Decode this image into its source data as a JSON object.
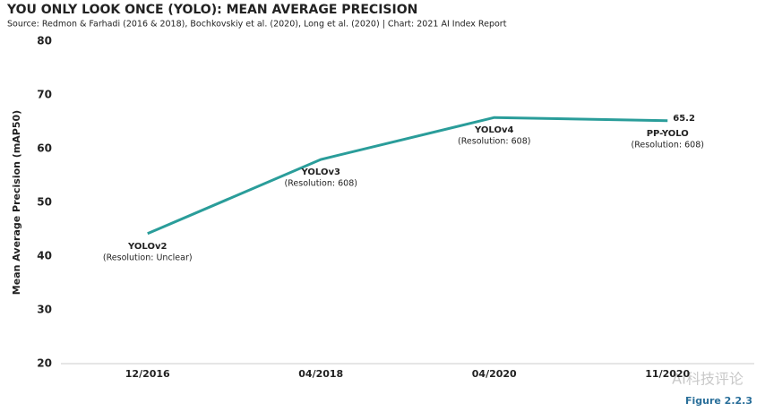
{
  "chart_data": {
    "type": "line",
    "title": "YOU ONLY LOOK ONCE (YOLO): MEAN AVERAGE PRECISION",
    "subtitle": "Source: Redmon & Farhadi (2016 & 2018), Bochkovskiy et al. (2020), Long et al. (2020) | Chart: 2021 AI Index Report",
    "y_label": "Mean Average Precision (mAP50)",
    "categories": [
      "12/2016",
      "04/2018",
      "04/2020",
      "11/2020"
    ],
    "values": [
      44.2,
      58,
      65.8,
      65.2
    ],
    "color": "#2a9d9a",
    "data_label_index": [
      3
    ],
    "annotations": [
      {
        "name": "YOLOv2",
        "detail": "(Resolution: Unclear)"
      },
      {
        "name": "YOLOv3",
        "detail": "(Resolution: 608)"
      },
      {
        "name": "YOLOv4",
        "detail": "(Resolution: 608)"
      },
      {
        "name": "PP-YOLO",
        "detail": "(Resolution: 608)"
      }
    ],
    "ylim": [
      20,
      80
    ],
    "yticks": [
      20,
      30,
      40,
      50,
      60,
      70,
      80
    ],
    "grid": false,
    "figure_label": "Figure 2.2.3",
    "watermark": "AI科技评论"
  }
}
